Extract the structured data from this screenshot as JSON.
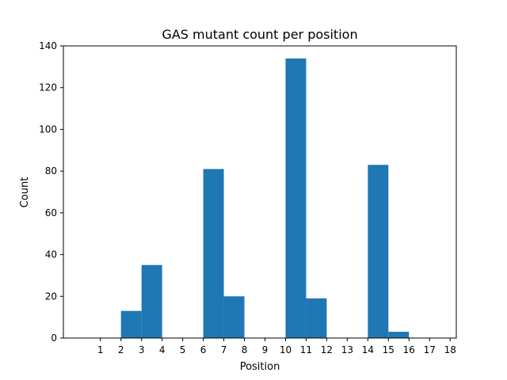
{
  "chart_data": {
    "type": "bar",
    "title": "GAS mutant count per position",
    "xlabel": "Position",
    "ylabel": "Count",
    "categories": [
      "1",
      "2",
      "3",
      "4",
      "5",
      "6",
      "7",
      "8",
      "9",
      "10",
      "11",
      "12",
      "13",
      "14",
      "15",
      "16",
      "17",
      "18"
    ],
    "values": [
      0,
      0,
      13,
      35,
      0,
      0,
      81,
      20,
      0,
      0,
      134,
      19,
      0,
      0,
      83,
      3,
      0,
      0
    ],
    "x_ticks": [
      1,
      2,
      3,
      4,
      5,
      6,
      7,
      8,
      9,
      10,
      11,
      12,
      13,
      14,
      15,
      16,
      17,
      18
    ],
    "xlim": [
      -0.8,
      18.3
    ],
    "ylim": [
      0,
      140
    ],
    "y_ticks": [
      0,
      20,
      40,
      60,
      80,
      100,
      120,
      140
    ],
    "bar_color": "#1f77b4",
    "grid": false,
    "legend": "none"
  }
}
